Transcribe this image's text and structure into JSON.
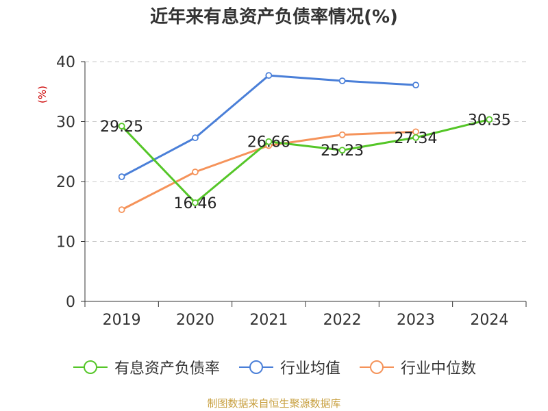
{
  "chart_data": {
    "type": "line",
    "title": "近年来有息资产负债率情况(%)",
    "ylabel": "(%)",
    "xlabel": "",
    "categories": [
      "2019",
      "2020",
      "2021",
      "2022",
      "2023",
      "2024"
    ],
    "ylim": [
      0,
      40
    ],
    "yticks": [
      0,
      10,
      20,
      30,
      40
    ],
    "grid": true,
    "legend_position": "bottom",
    "series": [
      {
        "name": "有息资产负债率",
        "color": "#55c628",
        "values": [
          29.25,
          16.46,
          26.66,
          25.23,
          27.34,
          30.35
        ],
        "labels": [
          "29.25",
          "16.46",
          "26.66",
          "25.23",
          "27.34",
          "30.35"
        ]
      },
      {
        "name": "行业均值",
        "color": "#4a7fd8",
        "values": [
          20.8,
          27.3,
          37.7,
          36.8,
          36.1,
          null
        ]
      },
      {
        "name": "行业中位数",
        "color": "#f5935a",
        "values": [
          15.3,
          21.6,
          26.0,
          27.8,
          28.3,
          null
        ]
      }
    ],
    "source": "制图数据来自恒生聚源数据库"
  }
}
